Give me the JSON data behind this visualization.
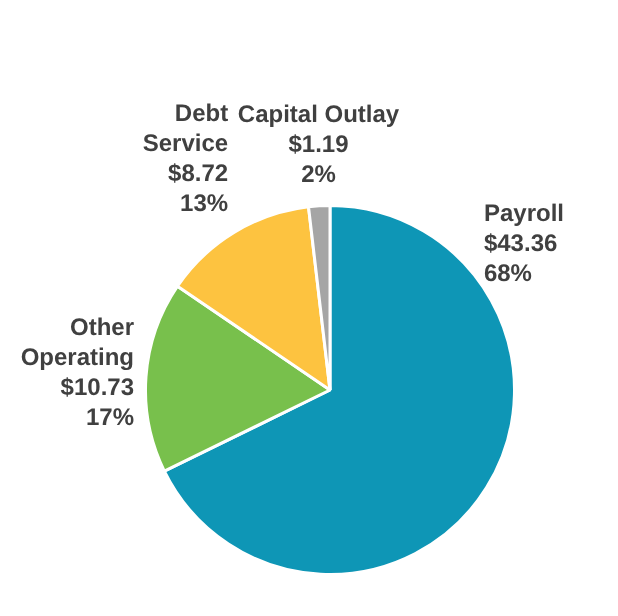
{
  "chart_data": {
    "type": "pie",
    "categories": [
      "Payroll",
      "Other Operating",
      "Debt Service",
      "Capital Outlay"
    ],
    "values": [
      43.36,
      10.73,
      8.72,
      1.19
    ],
    "colors": [
      "#0e96b6",
      "#78c04c",
      "#fdc340",
      "#a5a5a5"
    ],
    "value_labels": [
      "$43.36\n68%",
      "$10.73\n17%",
      "$8.72\n13%",
      "$1.19\n2%"
    ],
    "legend": false
  }
}
